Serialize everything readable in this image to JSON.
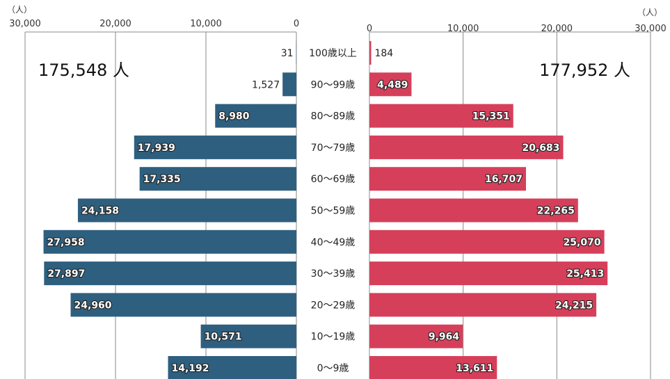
{
  "chart_data": {
    "type": "bar",
    "orientation": "horizontal-population-pyramid",
    "categories": [
      "100歳以上",
      "90～99歳",
      "80～89歳",
      "70～79歳",
      "60～69歳",
      "50～59歳",
      "40～49歳",
      "30～39歳",
      "20～29歳",
      "10～19歳",
      "0～9歳"
    ],
    "series": [
      {
        "side": "left",
        "color": "#2e5f7f",
        "values": [
          31,
          1527,
          8980,
          17939,
          17335,
          24158,
          27958,
          27897,
          24960,
          10571,
          14192
        ],
        "labels": [
          "31",
          "1,527",
          "8,980",
          "17,939",
          "17,335",
          "24,158",
          "27,958",
          "27,897",
          "24,960",
          "10,571",
          "14,192"
        ],
        "total_label": "175,548 人"
      },
      {
        "side": "right",
        "color": "#d63f5a",
        "values": [
          184,
          4489,
          15351,
          20683,
          16707,
          22265,
          25070,
          25413,
          24215,
          9964,
          13611
        ],
        "labels": [
          "184",
          "4,489",
          "15,351",
          "20,683",
          "16,707",
          "22,265",
          "25,070",
          "25,413",
          "24,215",
          "9,964",
          "13,611"
        ],
        "total_label": "177,952 人"
      }
    ],
    "axis": {
      "unit_label": "（人）",
      "left_ticks": [
        "30,000",
        "20,000",
        "10,000",
        "0"
      ],
      "right_ticks": [
        "0",
        "10,000",
        "20,000",
        "30,000"
      ],
      "xlim": [
        0,
        30000
      ],
      "grid": true
    }
  }
}
